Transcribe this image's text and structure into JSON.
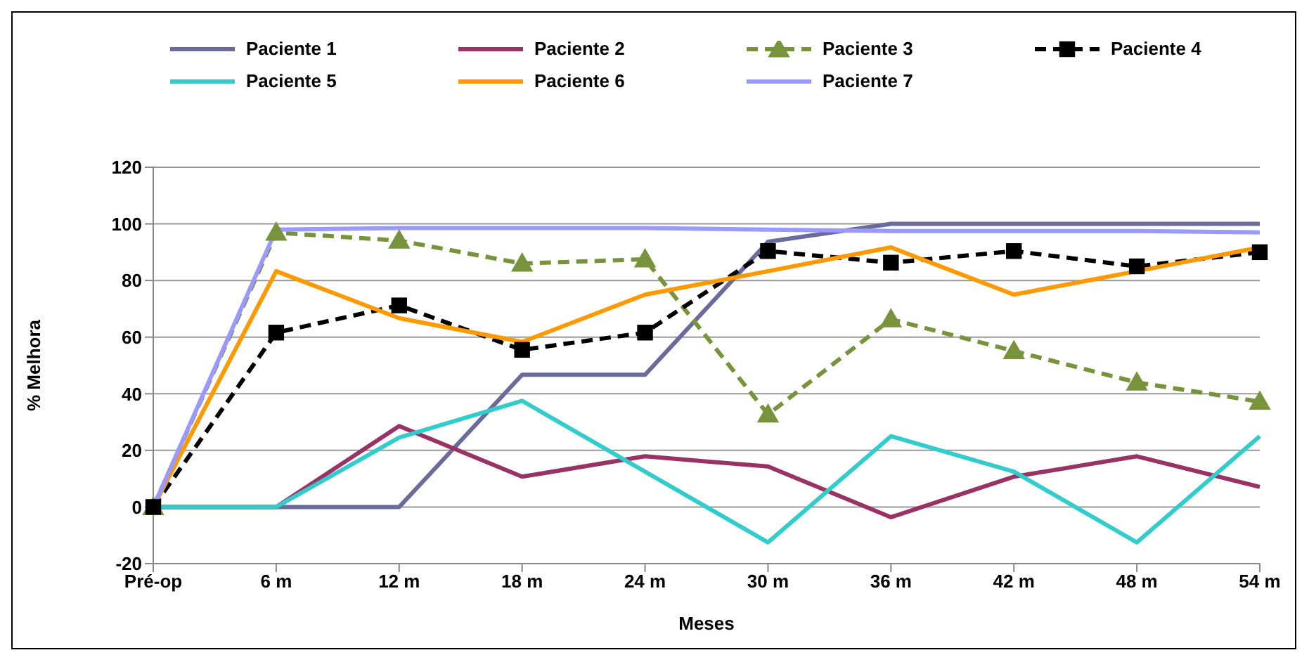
{
  "chart_data": {
    "type": "line",
    "xlabel": "Meses",
    "ylabel": "% Melhora",
    "categories": [
      "Pré-op",
      "6 m",
      "12 m",
      "18 m",
      "24 m",
      "30 m",
      "36 m",
      "42 m",
      "48 m",
      "54 m"
    ],
    "series": [
      {
        "name": "Paciente 1",
        "color": "#6b6b9b",
        "marker": "none",
        "line_style": "solid",
        "values": [
          0,
          0,
          0,
          46.7,
          46.7,
          93.7,
          100,
          100,
          100,
          100
        ]
      },
      {
        "name": "Paciente 2",
        "color": "#993366",
        "marker": "none",
        "line_style": "solid",
        "values": [
          0,
          0,
          28.6,
          10.7,
          17.9,
          14.3,
          -3.6,
          10.7,
          17.9,
          7.1
        ]
      },
      {
        "name": "Paciente 3",
        "color": "#77933c",
        "marker": "triangle",
        "line_style": "dashed",
        "values": [
          0,
          96.9,
          94.1,
          86,
          87.5,
          32.7,
          66.3,
          55.1,
          44,
          37.2
        ]
      },
      {
        "name": "Paciente 4",
        "color": "#000000",
        "marker": "square",
        "line_style": "dashed",
        "values": [
          0,
          61.6,
          71.2,
          55.5,
          61.6,
          90.4,
          86.3,
          90.4,
          85,
          90
        ]
      },
      {
        "name": "Paciente 5",
        "color": "#33cccc",
        "marker": "none",
        "line_style": "solid",
        "values": [
          0,
          0,
          24.5,
          37.5,
          12.5,
          -12.5,
          25,
          12.5,
          -12.5,
          25
        ]
      },
      {
        "name": "Paciente 6",
        "color": "#ff9900",
        "marker": "none",
        "line_style": "solid",
        "values": [
          0,
          83.3,
          66.7,
          58.3,
          75,
          83.3,
          91.7,
          75,
          83.3,
          91.7
        ]
      },
      {
        "name": "Paciente 7",
        "color": "#9999ff",
        "marker": "none",
        "line_style": "solid",
        "values": [
          0,
          98,
          98.5,
          98.5,
          98.5,
          98,
          97.5,
          97.5,
          97.5,
          97
        ]
      }
    ],
    "ylim": [
      -20,
      120
    ],
    "yticks": [
      -20,
      0,
      20,
      40,
      60,
      80,
      100,
      120
    ],
    "grid": "y",
    "legend": "top"
  }
}
